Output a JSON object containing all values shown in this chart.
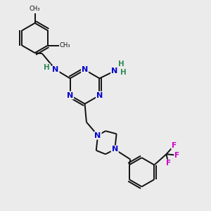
{
  "bg_color": "#ebebeb",
  "bond_color": "#111111",
  "N_color": "#0000cc",
  "H_color": "#2e8b57",
  "F_color": "#cc00cc",
  "line_width": 1.4,
  "figsize": [
    3.0,
    3.0
  ],
  "dpi": 100,
  "xlim": [
    0,
    10
  ],
  "ylim": [
    0,
    10
  ]
}
